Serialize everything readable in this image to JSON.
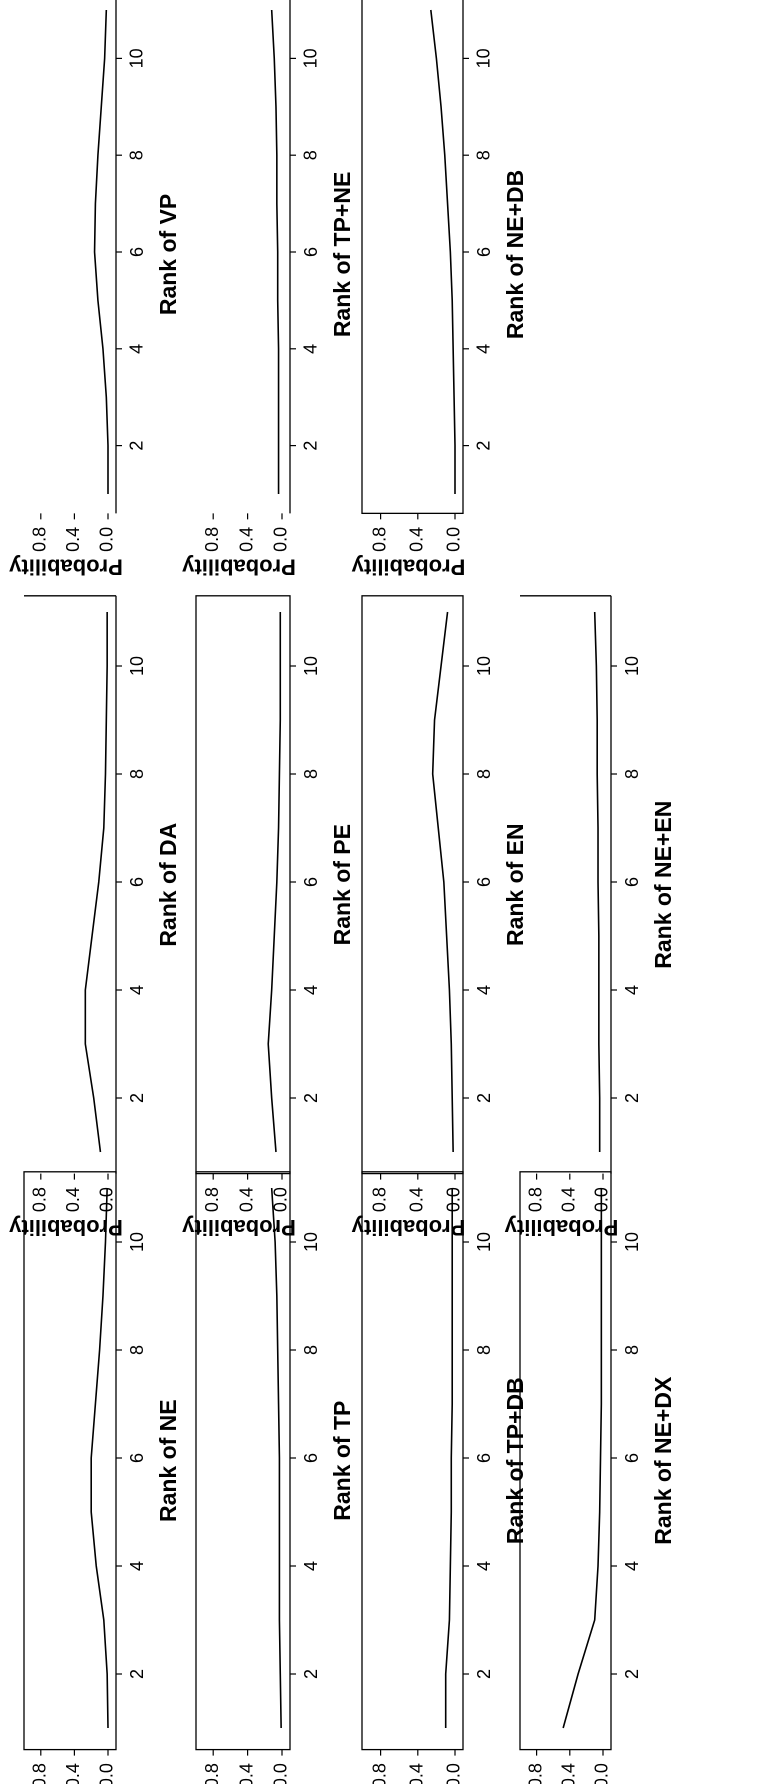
{
  "chart_data": [
    {
      "type": "line",
      "xlabel": "Rank of NE",
      "ylabel": "Probability",
      "x": [
        1,
        2,
        3,
        4,
        5,
        6,
        7,
        8,
        9,
        10,
        11
      ],
      "values": [
        0.0,
        0.01,
        0.05,
        0.14,
        0.2,
        0.2,
        0.15,
        0.1,
        0.06,
        0.03,
        0.01
      ],
      "xticks": [
        "2",
        "4",
        "6",
        "8",
        "10"
      ],
      "yticks": [
        "0.0",
        "0.4",
        "0.8"
      ],
      "ylim": [
        0,
        1
      ],
      "frame": "full"
    },
    {
      "type": "line",
      "xlabel": "Rank of DA",
      "ylabel": "Probability",
      "x": [
        1,
        2,
        3,
        4,
        5,
        6,
        7,
        8,
        9,
        10,
        11
      ],
      "values": [
        0.09,
        0.17,
        0.27,
        0.27,
        0.19,
        0.11,
        0.05,
        0.03,
        0.02,
        0.01,
        0.01
      ],
      "xticks": [
        "2",
        "4",
        "6",
        "8",
        "10"
      ],
      "yticks": [
        "0.0",
        "0.4",
        "0.8"
      ],
      "ylim": [
        0,
        1
      ],
      "frame": "partial"
    },
    {
      "type": "line",
      "xlabel": "Rank of VP",
      "ylabel": "Probability",
      "x": [
        1,
        2,
        3,
        4,
        5,
        6,
        7,
        8,
        9,
        10,
        11
      ],
      "values": [
        0.0,
        0.0,
        0.02,
        0.06,
        0.12,
        0.16,
        0.15,
        0.12,
        0.08,
        0.04,
        0.02
      ],
      "xticks": [
        "2",
        "4",
        "6",
        "8",
        "10"
      ],
      "yticks": [
        "0.0",
        "0.4",
        "0.8"
      ],
      "ylim": [
        0,
        1
      ],
      "frame": "partial"
    },
    {
      "type": "line",
      "xlabel": "Rank of TP",
      "ylabel": "Probability",
      "x": [
        1,
        2,
        3,
        4,
        5,
        6,
        7,
        8,
        9,
        10,
        11
      ],
      "values": [
        0.01,
        0.02,
        0.03,
        0.03,
        0.03,
        0.03,
        0.04,
        0.05,
        0.06,
        0.08,
        0.12
      ],
      "xticks": [
        "2",
        "4",
        "6",
        "8",
        "10"
      ],
      "yticks": [
        "0.0",
        "0.4",
        "0.8"
      ],
      "ylim": [
        0,
        1
      ],
      "frame": "full"
    },
    {
      "type": "line",
      "xlabel": "Rank of PE",
      "ylabel": "Probability",
      "x": [
        1,
        2,
        3,
        4,
        5,
        6,
        7,
        8,
        9,
        10,
        11
      ],
      "values": [
        0.07,
        0.12,
        0.16,
        0.12,
        0.09,
        0.06,
        0.04,
        0.03,
        0.02,
        0.02,
        0.02
      ],
      "xticks": [
        "2",
        "4",
        "6",
        "8",
        "10"
      ],
      "yticks": [
        "0.0",
        "0.4",
        "0.8"
      ],
      "ylim": [
        0,
        1
      ],
      "frame": "full"
    },
    {
      "type": "line",
      "xlabel": "Rank of TP+NE",
      "ylabel": "Probability",
      "x": [
        1,
        2,
        3,
        4,
        5,
        6,
        7,
        8,
        9,
        10,
        11
      ],
      "values": [
        0.04,
        0.04,
        0.04,
        0.04,
        0.05,
        0.05,
        0.06,
        0.06,
        0.07,
        0.09,
        0.12
      ],
      "xticks": [
        "2",
        "4",
        "6",
        "8",
        "10"
      ],
      "yticks": [
        "0.0",
        "0.4",
        "0.8"
      ],
      "ylim": [
        0,
        1
      ],
      "frame": "partial"
    },
    {
      "type": "line",
      "xlabel": "Rank of TP+DB",
      "ylabel": "Probability",
      "x": [
        1,
        2,
        3,
        4,
        5,
        6,
        7,
        8,
        9,
        10,
        11
      ],
      "values": [
        0.1,
        0.1,
        0.06,
        0.05,
        0.04,
        0.04,
        0.03,
        0.03,
        0.03,
        0.03,
        0.03
      ],
      "xticks": [
        "2",
        "4",
        "6",
        "8",
        "10"
      ],
      "yticks": [
        "0.0",
        "0.4",
        "0.8"
      ],
      "ylim": [
        0,
        1
      ],
      "frame": "full"
    },
    {
      "type": "line",
      "xlabel": "Rank of EN",
      "ylabel": "Probability",
      "x": [
        1,
        2,
        3,
        4,
        5,
        6,
        7,
        8,
        9,
        10,
        11
      ],
      "values": [
        0.02,
        0.03,
        0.04,
        0.06,
        0.09,
        0.12,
        0.18,
        0.24,
        0.22,
        0.15,
        0.08
      ],
      "xticks": [
        "2",
        "4",
        "6",
        "8",
        "10"
      ],
      "yticks": [
        "0.0",
        "0.4",
        "0.8"
      ],
      "ylim": [
        0,
        1
      ],
      "frame": "full"
    },
    {
      "type": "line",
      "xlabel": "Rank of NE+DB",
      "ylabel": "Probability",
      "x": [
        1,
        2,
        3,
        4,
        5,
        6,
        7,
        8,
        9,
        10,
        11
      ],
      "values": [
        0.0,
        0.0,
        0.01,
        0.02,
        0.03,
        0.05,
        0.08,
        0.11,
        0.15,
        0.2,
        0.26
      ],
      "xticks": [
        "2",
        "4",
        "6",
        "8",
        "10"
      ],
      "yticks": [
        "0.0",
        "0.4",
        "0.8"
      ],
      "ylim": [
        0,
        1
      ],
      "frame": "full"
    },
    {
      "type": "line",
      "xlabel": "Rank of NE+DX",
      "ylabel": "Probability",
      "x": [
        1,
        2,
        3,
        4,
        5,
        6,
        7,
        8,
        9,
        10,
        11
      ],
      "values": [
        0.48,
        0.3,
        0.1,
        0.06,
        0.04,
        0.03,
        0.02,
        0.02,
        0.02,
        0.02,
        0.02
      ],
      "xticks": [
        "2",
        "4",
        "6",
        "8",
        "10"
      ],
      "yticks": [
        "0.0",
        "0.4",
        "0.8"
      ],
      "ylim": [
        0,
        1
      ],
      "frame": "full"
    },
    {
      "type": "line",
      "xlabel": "Rank of NE+EN",
      "ylabel": "Probability",
      "x": [
        1,
        2,
        3,
        4,
        5,
        6,
        7,
        8,
        9,
        10,
        11
      ],
      "values": [
        0.04,
        0.04,
        0.05,
        0.05,
        0.05,
        0.06,
        0.06,
        0.07,
        0.07,
        0.08,
        0.1
      ],
      "xticks": [
        "2",
        "4",
        "6",
        "8",
        "10"
      ],
      "yticks": [
        "0.0",
        "0.4",
        "0.8"
      ],
      "ylim": [
        0,
        1
      ],
      "frame": "partial"
    }
  ]
}
